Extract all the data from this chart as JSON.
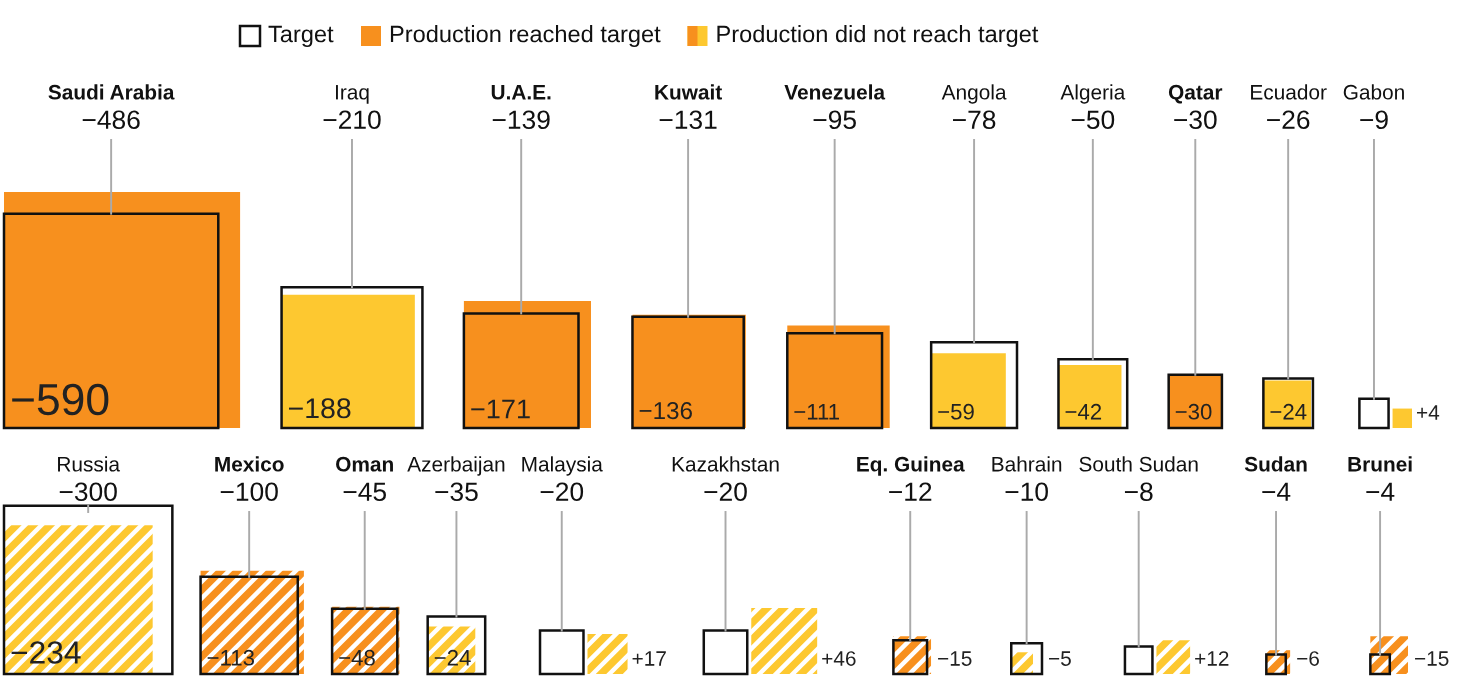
{
  "chart_data": [
    {
      "type": "other",
      "categories": [
        "Saudi Arabia",
        "Iraq",
        "U.A.E.",
        "Kuwait",
        "Venezuela",
        "Angola",
        "Algeria",
        "Qatar",
        "Ecuador",
        "Gabon"
      ],
      "legend": "top",
      "data_labels": true,
      "series": [
        {
          "name": "Target",
          "color": "#ffffff",
          "values": [
            -486,
            -210,
            -139,
            -131,
            -95,
            -78,
            -50,
            -30,
            -26,
            -9
          ]
        },
        {
          "name": "Production reached target",
          "color": "#f7901e",
          "values": [
            -590,
            null,
            -171,
            -136,
            -111,
            null,
            null,
            -30,
            null,
            null
          ],
          "value_labels": [
            "−590",
            null,
            "−171",
            "−136",
            "−111",
            null,
            null,
            "−30",
            null,
            null
          ]
        },
        {
          "name": "Production did not reach target",
          "color": "#fdc830",
          "values": [
            null,
            -188,
            null,
            null,
            null,
            -59,
            -42,
            null,
            -24,
            4
          ],
          "value_labels": [
            null,
            "−188",
            null,
            null,
            null,
            "−59",
            "−42",
            null,
            "−24",
            "+4"
          ]
        }
      ]
    },
    {
      "type": "other",
      "categories": [
        "Russia",
        "Mexico",
        "Oman",
        "Azerbaijan",
        "Malaysia",
        "Kazakhstan",
        "Eq. Guinea",
        "Bahrain",
        "South Sudan",
        "Sudan",
        "Brunei"
      ],
      "data_labels": true,
      "series": [
        {
          "color": "#ffffff",
          "values": [
            -300,
            -100,
            -45,
            -35,
            -20,
            -20,
            -12,
            -10,
            -8,
            -4,
            -4
          ]
        },
        {
          "color": "#f7901e",
          "values": [
            null,
            -113,
            -48,
            null,
            null,
            null,
            -15,
            null,
            null,
            -6,
            -15
          ],
          "value_labels": [
            null,
            "−113",
            "−48",
            null,
            null,
            null,
            "−15",
            null,
            null,
            "−6",
            "−15"
          ]
        },
        {
          "color": "#fdc830",
          "values": [
            -234,
            null,
            null,
            -24,
            17,
            46,
            null,
            -5,
            12,
            null,
            null
          ],
          "value_labels": [
            "−234",
            null,
            null,
            "−24",
            "+17",
            "+46",
            null,
            "−5",
            "+12",
            null,
            null
          ]
        }
      ]
    }
  ]
}
